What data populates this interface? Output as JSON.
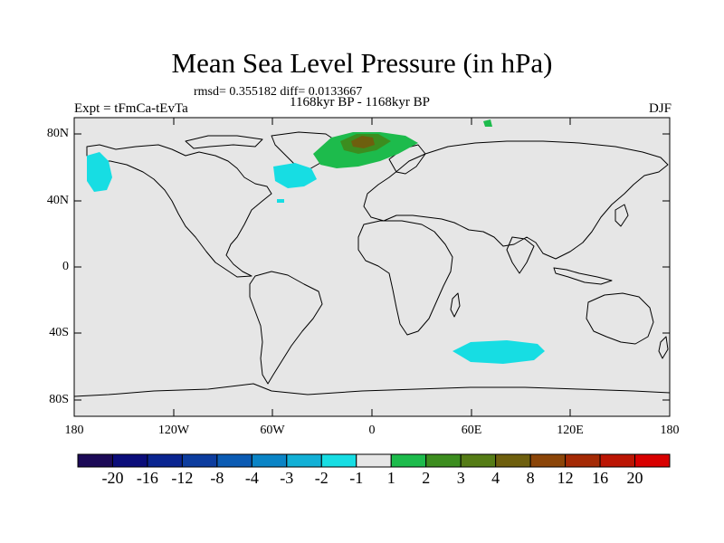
{
  "title": "Mean Sea Level Pressure (in hPa)",
  "stats": "rmsd= 0.355182 diff= 0.0133667",
  "period": "1168kyr BP - 1168kyr BP",
  "experiment": "Expt = tFmCa-tEvTa",
  "season": "DJF",
  "lat_labels": [
    "80N",
    "40N",
    "0",
    "40S",
    "80S"
  ],
  "lon_labels": [
    "180",
    "120W",
    "60W",
    "0",
    "60E",
    "120E",
    "180"
  ],
  "colorbar": {
    "labels": [
      "-20",
      "-16",
      "-12",
      "-8",
      "-4",
      "-3",
      "-2",
      "-1",
      "1",
      "2",
      "3",
      "4",
      "8",
      "12",
      "16",
      "20"
    ],
    "colors": [
      "#1c0a57",
      "#0b0d7a",
      "#0a2590",
      "#0c3c9e",
      "#0b5bb3",
      "#0a84c6",
      "#12b0d6",
      "#17dde3",
      "#e6e6e6",
      "#1dbb4c",
      "#3c8d1f",
      "#557c16",
      "#6e5f0e",
      "#8b4508",
      "#a42a05",
      "#bb1503",
      "#d80000"
    ]
  },
  "colors": {
    "ocean": "#e6e6e6",
    "land_outline": "#000000",
    "neg_anomaly": "#17dde3",
    "pos_anomaly_low": "#1dbb4c",
    "pos_anomaly_mid": "#3c8d1f",
    "pos_anomaly_high": "#6e5f0e"
  }
}
